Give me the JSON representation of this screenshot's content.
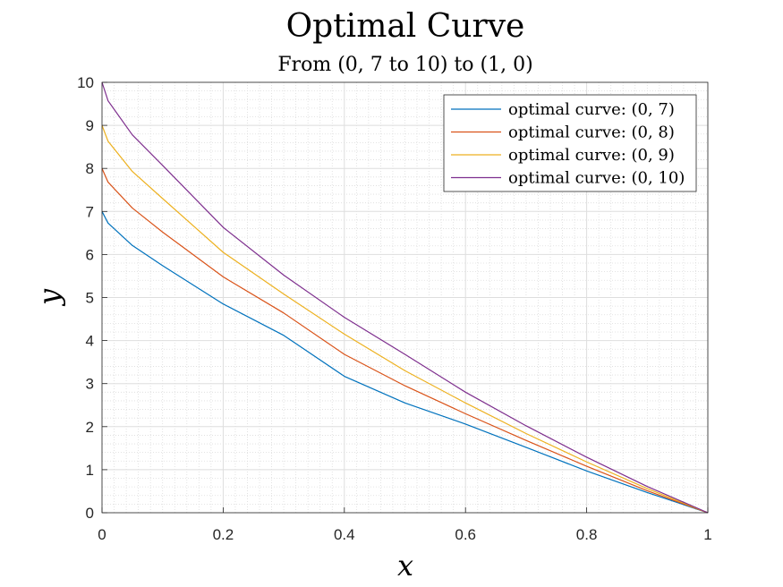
{
  "chart_data": {
    "type": "line",
    "title": "Optimal Curve",
    "subtitle": "From (0, 7 to 10) to (1, 0)",
    "xlabel": "x",
    "ylabel": "y",
    "xlim": [
      0,
      1
    ],
    "ylim": [
      0,
      10
    ],
    "xticks": [
      0,
      0.2,
      0.4,
      0.6,
      0.8,
      1
    ],
    "xtick_labels": [
      "0",
      "0.2",
      "0.4",
      "0.6",
      "0.8",
      "1"
    ],
    "yticks": [
      0,
      1,
      2,
      3,
      4,
      5,
      6,
      7,
      8,
      9,
      10
    ],
    "ytick_labels": [
      "0",
      "1",
      "2",
      "3",
      "4",
      "5",
      "6",
      "7",
      "8",
      "9",
      "10"
    ],
    "grid": true,
    "minor_grid": true,
    "legend_position": "top-right",
    "x": [
      0,
      0.01,
      0.05,
      0.1,
      0.2,
      0.3,
      0.4,
      0.5,
      0.6,
      0.7,
      0.8,
      0.9,
      1.0
    ],
    "series": [
      {
        "name": "optimal curve: (0, 7)",
        "color": "#0072BD",
        "values": [
          7.0,
          6.73,
          6.21,
          5.74,
          4.85,
          4.12,
          3.17,
          2.55,
          2.06,
          1.52,
          0.97,
          0.47,
          0.0
        ]
      },
      {
        "name": "optimal curve: (0, 8)",
        "color": "#D95319",
        "values": [
          8.0,
          7.68,
          7.08,
          6.52,
          5.48,
          4.64,
          3.68,
          2.95,
          2.3,
          1.68,
          1.08,
          0.51,
          0.0
        ]
      },
      {
        "name": "optimal curve: (0, 9)",
        "color": "#EDB120",
        "values": [
          9.0,
          8.63,
          7.93,
          7.3,
          6.05,
          5.08,
          4.15,
          3.3,
          2.55,
          1.84,
          1.18,
          0.56,
          0.0
        ]
      },
      {
        "name": "optimal curve: (0, 10)",
        "color": "#7E2F8E",
        "values": [
          10.0,
          9.57,
          8.78,
          8.07,
          6.63,
          5.52,
          4.54,
          3.68,
          2.8,
          2.02,
          1.29,
          0.61,
          0.0
        ]
      }
    ]
  }
}
